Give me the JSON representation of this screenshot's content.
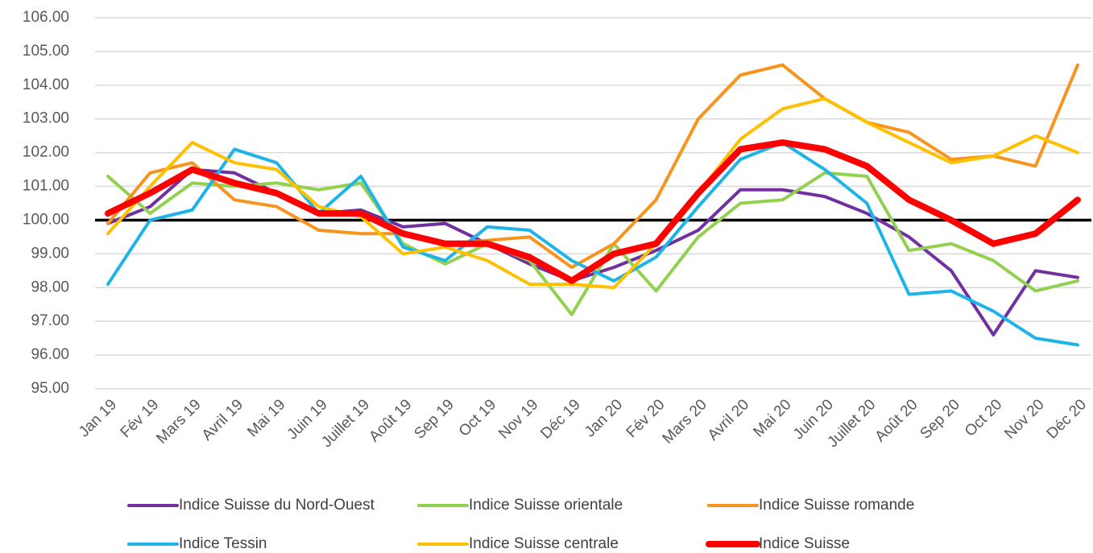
{
  "chart_data": {
    "type": "line",
    "categories": [
      "Jan 19",
      "Fév 19",
      "Mars 19",
      "Avril 19",
      "Mai 19",
      "Juin 19",
      "Juillet 19",
      "Août 19",
      "Sep 19",
      "Oct 19",
      "Nov 19",
      "Déc 19",
      "Jan 20",
      "Fév 20",
      "Mars 20",
      "Avril 20",
      "Mai 20",
      "Juin 20",
      "Juillet 20",
      "Août 20",
      "Sep 20",
      "Oct 20",
      "Nov 20",
      "Déc 20"
    ],
    "series": [
      {
        "name": "Indice Suisse du Nord-Ouest",
        "color": "#7030a0",
        "line_width": 4,
        "values": [
          99.9,
          100.4,
          101.5,
          101.4,
          100.8,
          100.2,
          100.3,
          99.8,
          99.9,
          99.3,
          98.7,
          98.2,
          98.6,
          99.1,
          99.7,
          100.9,
          100.9,
          100.7,
          100.2,
          99.5,
          98.5,
          96.6,
          98.5,
          98.3
        ]
      },
      {
        "name": "Indice Suisse orientale",
        "color": "#92d050",
        "line_width": 4,
        "values": [
          101.3,
          100.2,
          101.1,
          101.0,
          101.1,
          100.9,
          101.1,
          99.3,
          98.7,
          99.3,
          98.8,
          97.2,
          99.3,
          97.9,
          99.5,
          100.5,
          100.6,
          101.4,
          101.3,
          99.1,
          99.3,
          98.8,
          97.9,
          98.2
        ]
      },
      {
        "name": "Indice Suisse romande",
        "color": "#f7941d",
        "line_width": 4,
        "values": [
          99.9,
          101.4,
          101.7,
          100.6,
          100.4,
          99.7,
          99.6,
          99.6,
          99.3,
          99.4,
          99.5,
          98.6,
          99.3,
          100.6,
          103.0,
          104.3,
          104.6,
          103.6,
          102.9,
          102.6,
          101.8,
          101.9,
          101.6,
          104.6
        ]
      },
      {
        "name": "Indice Tessin",
        "color": "#1fb4e8",
        "line_width": 4,
        "values": [
          98.1,
          100.0,
          100.3,
          102.1,
          101.7,
          100.2,
          101.3,
          99.2,
          98.8,
          99.8,
          99.7,
          98.8,
          98.2,
          98.9,
          100.4,
          101.8,
          102.3,
          101.5,
          100.5,
          97.8,
          97.9,
          97.3,
          96.5,
          96.3
        ]
      },
      {
        "name": "Indice Suisse centrale",
        "color": "#ffc000",
        "line_width": 4,
        "values": [
          99.6,
          101.0,
          102.3,
          101.7,
          101.5,
          100.4,
          100.1,
          99.0,
          99.2,
          98.8,
          98.1,
          98.1,
          98.0,
          99.3,
          100.8,
          102.4,
          103.3,
          103.6,
          102.9,
          102.3,
          101.7,
          101.9,
          102.5,
          102.0
        ]
      },
      {
        "name": "Indice Suisse",
        "color": "#ff0000",
        "line_width": 8,
        "values": [
          100.2,
          100.8,
          101.5,
          101.1,
          100.8,
          100.2,
          100.2,
          99.6,
          99.3,
          99.3,
          98.9,
          98.2,
          99.0,
          99.3,
          100.8,
          102.1,
          102.3,
          102.1,
          101.6,
          100.6,
          100.0,
          99.3,
          99.6,
          100.6
        ]
      }
    ],
    "ylim": [
      95,
      106
    ],
    "yticks": [
      {
        "value": 95,
        "label": "95.00"
      },
      {
        "value": 96,
        "label": "96.00"
      },
      {
        "value": 97,
        "label": "97.00"
      },
      {
        "value": 98,
        "label": "98.00"
      },
      {
        "value": 99,
        "label": "99.00"
      },
      {
        "value": 100,
        "label": "100.00"
      },
      {
        "value": 101,
        "label": "101.00"
      },
      {
        "value": 102,
        "label": "102.00"
      },
      {
        "value": 103,
        "label": "103.00"
      },
      {
        "value": 104,
        "label": "104.00"
      },
      {
        "value": 105,
        "label": "105.00"
      },
      {
        "value": 106,
        "label": "106.00"
      }
    ],
    "reference_line": 100,
    "grid": true,
    "legend": "bottom"
  }
}
